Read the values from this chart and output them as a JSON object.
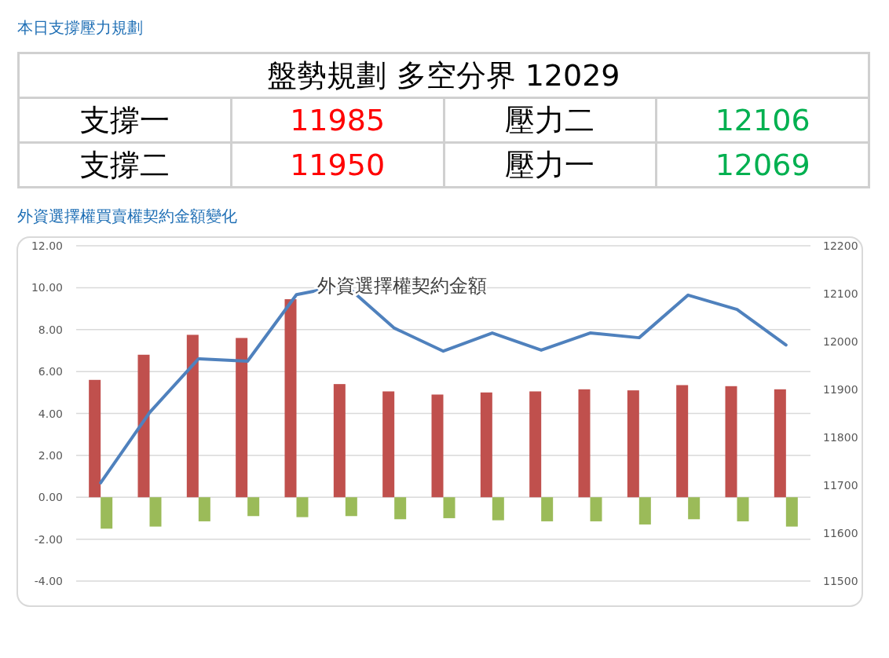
{
  "chart_data": [
    {
      "type": "other",
      "title": "本日支撐壓力規劃",
      "annotations": [
        "盤勢規劃 多空分界 12029",
        "支撐一",
        "11985",
        "壓力二",
        "12106",
        "支撐二",
        "11950",
        "壓力一",
        "12069"
      ],
      "colors": [
        "#000000",
        "#000000",
        "#ff0000",
        "#000000",
        "#00b050",
        "#000000",
        "#ff0000",
        "#000000",
        "#00b050"
      ]
    },
    {
      "type": "bar",
      "title": "外資選擇權買賣權契約金額變化",
      "subtitle": "外資選擇權契約金額",
      "categories": [
        null,
        null,
        null,
        null,
        null,
        null,
        null,
        null,
        null,
        null,
        null,
        null,
        null,
        null,
        null
      ],
      "series": [
        {
          "color": "#c0504d",
          "values": [
            5.6,
            6.8,
            7.75,
            7.6,
            9.45,
            5.4,
            5.05,
            4.9,
            5.0,
            5.05,
            5.15,
            5.1,
            5.35,
            5.3,
            5.15
          ]
        },
        {
          "color": "#9bbb59",
          "values": [
            -1.5,
            -1.4,
            -1.15,
            -0.9,
            -0.95,
            -0.9,
            -1.05,
            -1.0,
            -1.1,
            -1.15,
            -1.15,
            -1.3,
            -1.05,
            -1.15,
            -1.4
          ]
        },
        {
          "type": "line",
          "axis": "y2",
          "color": "#4f81bd",
          "values": [
            11705,
            11852,
            11964,
            11959,
            12098,
            12118,
            12028,
            11980,
            12018,
            11982,
            12018,
            12008,
            12097,
            12067,
            11993
          ]
        }
      ],
      "ylim": [
        -4,
        12
      ],
      "yticks": [
        {
          "value": -4,
          "label": "-4.00"
        },
        {
          "value": -2,
          "label": "-2.00"
        },
        {
          "value": 0,
          "label": "0.00"
        },
        {
          "value": 2,
          "label": "2.00"
        },
        {
          "value": 4,
          "label": "4.00"
        },
        {
          "value": 6,
          "label": "6.00"
        },
        {
          "value": 8,
          "label": "8.00"
        },
        {
          "value": 10,
          "label": "10.00"
        },
        {
          "value": 12,
          "label": "12.00"
        }
      ],
      "y2lim": [
        11500,
        12200
      ],
      "y2ticks": [
        11500,
        11600,
        11700,
        11800,
        11900,
        12000,
        12100,
        12200
      ],
      "grid": "y",
      "marker": "none",
      "line_style": "solid"
    }
  ]
}
